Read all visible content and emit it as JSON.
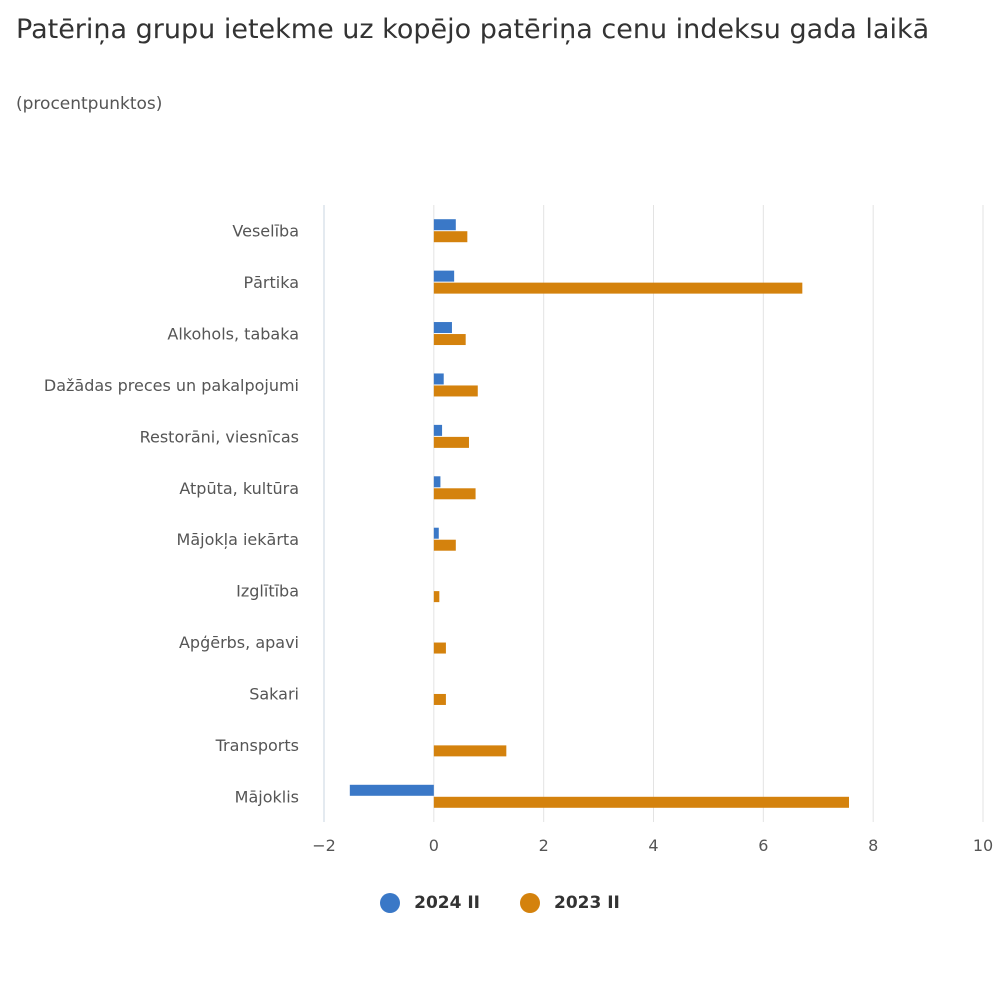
{
  "chart_data": {
    "type": "bar",
    "orientation": "horizontal",
    "title": "Patēriņa grupu ietekme uz kopējo patēriņa cenu indeksu gada laikā",
    "subtitle": "(procentpunktos)",
    "categories": [
      "Veselība",
      "Pārtika",
      "Alkohols, tabaka",
      "Dažādas preces un pakalpojumi",
      "Restorāni, viesnīcas",
      "Atpūta, kultūra",
      "Mājokļa iekārta",
      "Izglītība",
      "Apģērbs, apavi",
      "Sakari",
      "Transports",
      "Mājoklis"
    ],
    "series": [
      {
        "name": "2024 II",
        "color": "#3a78c7",
        "values": [
          0.4,
          0.37,
          0.33,
          0.18,
          0.15,
          0.12,
          0.09,
          0.0,
          0.0,
          0.0,
          0.0,
          -1.53
        ]
      },
      {
        "name": "2023 II",
        "color": "#d4820d",
        "values": [
          0.61,
          6.71,
          0.58,
          0.8,
          0.64,
          0.76,
          0.4,
          0.1,
          0.22,
          0.22,
          1.32,
          7.56
        ]
      }
    ],
    "xlim": [
      -2,
      10
    ],
    "xticks": [
      -2,
      0,
      2,
      4,
      6,
      8,
      10
    ],
    "xtick_labels": [
      "−2",
      "0",
      "2",
      "4",
      "6",
      "8",
      "10"
    ],
    "grid": true,
    "legend_position": "bottom"
  }
}
